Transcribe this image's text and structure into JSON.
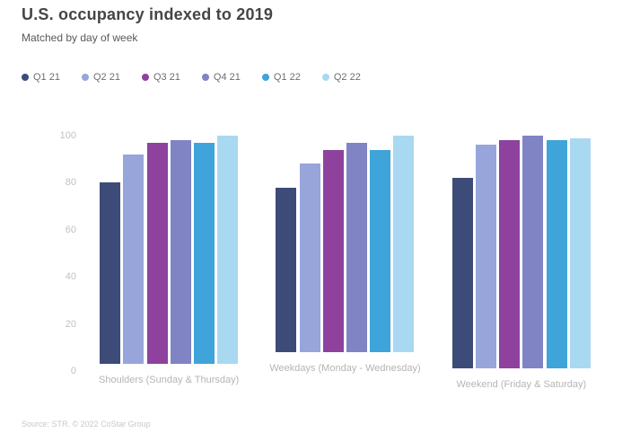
{
  "chart": {
    "title": "U.S. occupancy indexed to 2019",
    "subtitle": "Matched by day of week",
    "source": "Source: STR. © 2022 CoStar Group"
  },
  "chart_data": {
    "type": "bar",
    "title": "U.S. occupancy indexed to 2019",
    "subtitle": "Matched by day of week",
    "xlabel": "",
    "ylabel": "",
    "ylim": [
      0,
      100
    ],
    "yticks": [
      0,
      20,
      40,
      60,
      80,
      100
    ],
    "grid": false,
    "legend_position": "top-left",
    "categories": [
      "Shoulders (Sunday & Thursday)",
      "Weekdays (Monday - Wednesday)",
      "Weekend (Friday & Saturday)"
    ],
    "series": [
      {
        "name": "Q1 21",
        "color": "#3d4b78",
        "values": [
          77,
          70,
          81
        ]
      },
      {
        "name": "Q2 21",
        "color": "#97a5db",
        "values": [
          89,
          80,
          95
        ]
      },
      {
        "name": "Q3 21",
        "color": "#8e429e",
        "values": [
          94,
          86,
          97
        ]
      },
      {
        "name": "Q4 21",
        "color": "#8083c4",
        "values": [
          95,
          89,
          99
        ]
      },
      {
        "name": "Q1 22",
        "color": "#3ea4da",
        "values": [
          94,
          86,
          97
        ]
      },
      {
        "name": "Q2 22",
        "color": "#a9d9f1",
        "values": [
          97,
          92,
          98
        ]
      }
    ]
  }
}
